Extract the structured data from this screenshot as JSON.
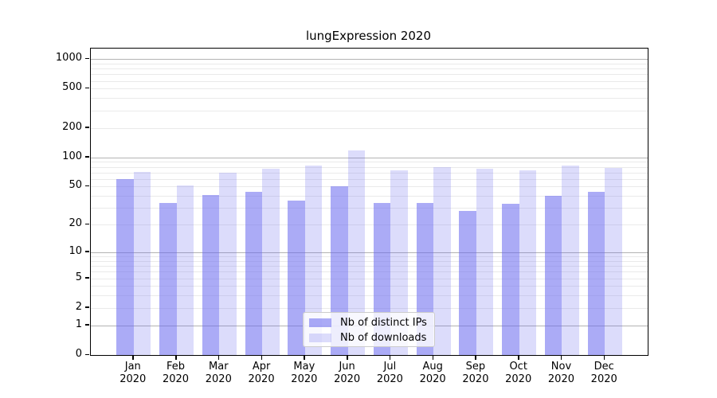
{
  "figure_background": "#ffffff",
  "colors": {
    "spine": "#000000",
    "tick_text": "#000000",
    "grid_major": "#b3b3b3",
    "grid_minor": "#eaeaea",
    "legend_border": "#cccccc",
    "legend_background": "rgba(255,255,255,0.8)"
  },
  "chart_data": {
    "type": "bar",
    "title": "lungExpression 2020",
    "categories": [
      "Jan",
      "Feb",
      "Mar",
      "Apr",
      "May",
      "Jun",
      "Jul",
      "Aug",
      "Sep",
      "Oct",
      "Nov",
      "Dec"
    ],
    "category_year": "2020",
    "series": [
      {
        "name": "Nb of distinct IPs",
        "color": "rgba(102,102,238,0.55)",
        "values": [
          60,
          34,
          41,
          44,
          36,
          50,
          34,
          34,
          28,
          33,
          40,
          44
        ]
      },
      {
        "name": "Nb of downloads",
        "color": "rgba(102,102,238,0.23)",
        "values": [
          71,
          51,
          69,
          76,
          83,
          118,
          73,
          80,
          76,
          74,
          82,
          78
        ]
      }
    ],
    "y_scale": "log10(1+y)",
    "y_axis_ticks": [
      0,
      1,
      2,
      5,
      10,
      20,
      50,
      100,
      200,
      500,
      1000
    ],
    "y_top": 1279,
    "grid": {
      "major_lines": [
        1,
        10,
        100,
        1000
      ],
      "minor_multipliers": [
        2,
        3,
        4,
        5,
        6,
        7,
        8,
        9
      ],
      "minor_decades": [
        1,
        10,
        100
      ]
    },
    "legend_position": "bottom-center",
    "xlabel": "",
    "ylabel": ""
  }
}
